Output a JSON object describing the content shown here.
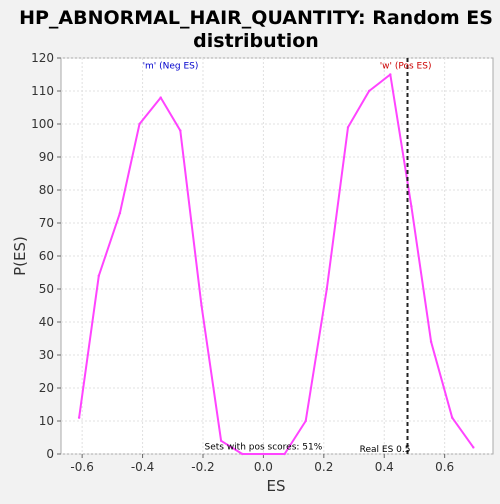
{
  "chart_data": {
    "type": "line",
    "title_line1": "HP_ABNORMAL_HAIR_QUANTITY: Random ES",
    "title_line2": "distribution",
    "xlabel": "ES",
    "ylabel": "P(ES)",
    "xlim": [
      -0.67,
      0.76
    ],
    "ylim": [
      0,
      120
    ],
    "xticks": [
      -0.6,
      -0.4,
      -0.2,
      0.0,
      0.2,
      0.4,
      0.6
    ],
    "xtick_labels": [
      "-0.6",
      "-0.4",
      "-0.2",
      "0.0",
      "0.2",
      "0.4",
      "0.6"
    ],
    "yticks": [
      0,
      10,
      20,
      30,
      40,
      50,
      60,
      70,
      80,
      90,
      100,
      110,
      120
    ],
    "ytick_labels": [
      "0",
      "10",
      "20",
      "30",
      "40",
      "50",
      "60",
      "70",
      "80",
      "90",
      "100",
      "110",
      "120"
    ],
    "grid": true,
    "series": [
      {
        "color": "#ff44ff",
        "x": [
          -0.61,
          -0.545,
          -0.475,
          -0.41,
          -0.34,
          -0.275,
          -0.205,
          -0.14,
          -0.07,
          0.0,
          0.07,
          0.14,
          0.21,
          0.28,
          0.35,
          0.42,
          0.49,
          0.555,
          0.625,
          0.695
        ],
        "y": [
          11,
          54,
          73,
          100,
          108,
          98,
          45,
          4,
          0,
          0,
          0,
          10,
          50,
          99,
          110,
          115,
          75,
          34,
          11,
          2
        ]
      }
    ],
    "real_es": {
      "x": 0.477,
      "label": "Real ES 0.5",
      "color": "#222222"
    },
    "annotations": {
      "neg": {
        "text": "'m' (Neg ES)",
        "color": "#0000cc",
        "x": -0.4,
        "y": 118
      },
      "pos": {
        "text": "'w' (Pos ES)",
        "color": "#cc0000",
        "x": 0.385,
        "y": 118
      },
      "sets": {
        "text": "Sets with pos scores: 51%",
        "color": "#000000",
        "x": -0.195,
        "y": 1
      }
    }
  }
}
